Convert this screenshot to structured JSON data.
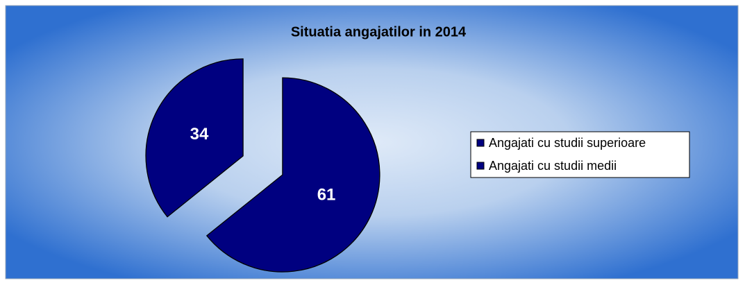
{
  "chart_data": {
    "type": "pie",
    "title": "Situatia angajatilor in 2014",
    "categories": [
      "Angajati cu studii superioare",
      "Angajati cu studii medii"
    ],
    "values": [
      61,
      34
    ],
    "colors": [
      "#000080",
      "#000080"
    ],
    "exploded": true,
    "legend": "right"
  }
}
